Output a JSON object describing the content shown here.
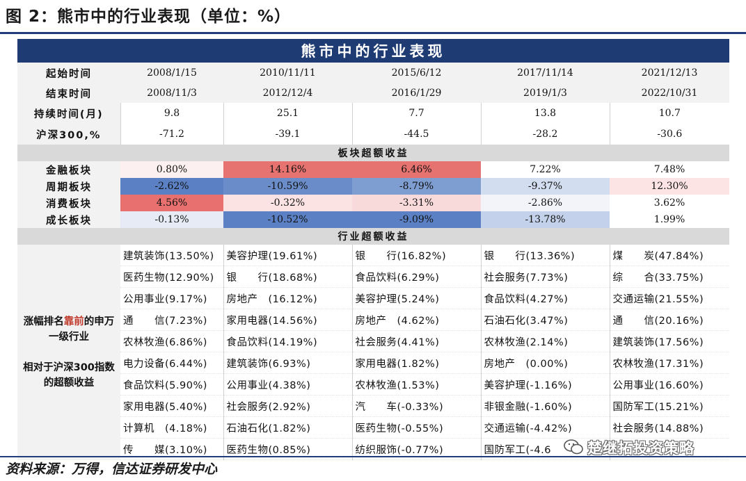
{
  "figure_title": "图 2：熊市中的行业表现（单位：%）",
  "table_title": "熊市中的行业表现",
  "labels": {
    "start": "起始时间",
    "end": "结束时间",
    "duration": "持续时间(月)",
    "hs300": "沪深300,%",
    "sector_header": "板块超额收益",
    "industry_header": "行业超额收益",
    "side_line1": "涨幅排名",
    "side_red": "靠前",
    "side_line2": "的申万一级行业",
    "side_line3": "相对于沪深300指数的超额收益"
  },
  "periods": [
    {
      "start": "2008/1/15",
      "end": "2008/11/3",
      "duration": "9.8",
      "hs300": "-71.2"
    },
    {
      "start": "2010/11/11",
      "end": "2012/12/4",
      "duration": "25.1",
      "hs300": "-39.1"
    },
    {
      "start": "2015/6/12",
      "end": "2016/1/29",
      "duration": "7.7",
      "hs300": "-44.5"
    },
    {
      "start": "2017/11/14",
      "end": "2019/1/3",
      "duration": "13.8",
      "hs300": "-28.2"
    },
    {
      "start": "2021/12/13",
      "end": "2022/10/31",
      "duration": "10.7",
      "hs300": "-30.6"
    }
  ],
  "sectors": [
    {
      "name": "金融板块",
      "values": [
        "0.80%",
        "14.16%",
        "6.46%",
        "7.22%",
        "7.48%"
      ],
      "colors": [
        "#fdf0f0",
        "#e67370",
        "#e67370",
        "#ffffff",
        "#ffffff"
      ]
    },
    {
      "name": "周期板块",
      "values": [
        "-2.62%",
        "-10.59%",
        "-8.79%",
        "-9.37%",
        "12.30%"
      ],
      "colors": [
        "#5b80c3",
        "#6a8cc8",
        "#7e9dd0",
        "#d2ddef",
        "#fce4e4"
      ]
    },
    {
      "name": "消费板块",
      "values": [
        "4.56%",
        "-0.32%",
        "-3.31%",
        "-2.86%",
        "3.62%"
      ],
      "colors": [
        "#e8706e",
        "#fbe3e3",
        "#f9dada",
        "#f2f4fa",
        "#ffffff"
      ]
    },
    {
      "name": "成长板块",
      "values": [
        "-0.13%",
        "-10.52%",
        "-9.09%",
        "-13.78%",
        "1.99%"
      ],
      "colors": [
        "#e6ebf6",
        "#5b80c3",
        "#5b80c3",
        "#c3d1ea",
        "#ffffff"
      ]
    }
  ],
  "industries": [
    [
      "建筑装饰(13.50%)",
      "美容护理(19.61%)",
      "银　　行(16.82%)",
      "银　　行(13.36%)",
      "煤　　炭(47.84%)"
    ],
    [
      "医药生物(12.90%)",
      "银　　行(18.68%)",
      "食品饮料(6.29%)",
      "社会服务(7.73%)",
      "综　　合(33.75%)"
    ],
    [
      "公用事业(9.17%)",
      "房地产　(16.12%)",
      "美容护理(5.24%)",
      "食品饮料(4.27%)",
      "交通运输(21.55%)"
    ],
    [
      "通　　信(7.23%)",
      "家用电器(14.56%)",
      "房地产　(4.62%)",
      "石油石化(3.47%)",
      "通　　信(20.16%)"
    ],
    [
      "农林牧渔(6.86%)",
      "食品饮料(14.19%)",
      "社会服务(4.41%)",
      "农林牧渔(2.14%)",
      "建筑装饰(17.56%)"
    ],
    [
      "电力设备(6.44%)",
      "建筑装饰(6.93%)",
      "家用电器(1.82%)",
      "房地产　(0.00%)",
      "农林牧渔(17.31%)"
    ],
    [
      "食品饮料(5.90%)",
      "公用事业(4.38%)",
      "农林牧渔(1.53%)",
      "美容护理(-1.16%)",
      "公用事业(16.60%)"
    ],
    [
      "家用电器(5.40%)",
      "社会服务(2.92%)",
      "汽　　车(-0.33%)",
      "非银金融(-1.60%)",
      "国防军工(15.21%)"
    ],
    [
      "计算机　(4.18%)",
      "石油石化(1.82%)",
      "医药生物(-0.55%)",
      "交通运输(-4.42%)",
      "社会服务(14.88%)"
    ],
    [
      "传　　媒(3.10%)",
      "医药生物(0.85%)",
      "纺织服饰(-0.77%)",
      "国防军工(-4.6",
      ""
    ]
  ],
  "source": "资料来源：万得，信达证券研发中心",
  "watermark": "楚继拓投资策略",
  "watermark_icon": "wechat-icon"
}
